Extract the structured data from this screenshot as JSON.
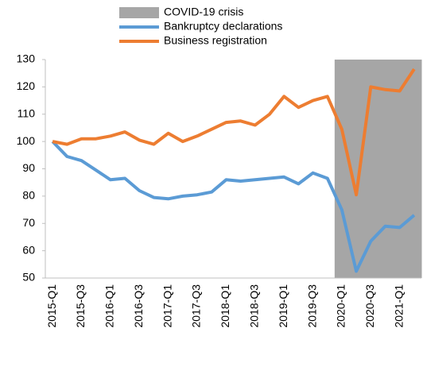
{
  "chart_data": {
    "type": "line",
    "categories": [
      "2015-Q1",
      null,
      "2015-Q3",
      null,
      "2016-Q1",
      null,
      "2016-Q3",
      null,
      "2017-Q1",
      null,
      "2017-Q3",
      null,
      "2018-Q1",
      null,
      "2018-Q3",
      null,
      "2019-Q1",
      null,
      "2019-Q3",
      null,
      "2020-Q1",
      null,
      "2020-Q3",
      null,
      "2021-Q1",
      null
    ],
    "series": [
      {
        "name": "COVID-19 crisis",
        "type": "bar",
        "color": "#a6a6a6",
        "values": [
          null,
          null,
          null,
          null,
          null,
          null,
          null,
          null,
          null,
          null,
          null,
          null,
          null,
          null,
          null,
          null,
          null,
          null,
          null,
          null,
          130,
          130,
          130,
          130,
          130,
          130
        ]
      },
      {
        "name": "Bankruptcy declarations",
        "type": "line",
        "color": "#5b9bd5",
        "values": [
          100,
          94.5,
          93,
          89.5,
          86,
          86.5,
          82,
          79.5,
          79,
          80,
          80.5,
          81.5,
          86,
          85.5,
          86,
          86.5,
          87,
          84.5,
          88.5,
          86.5,
          75,
          52.5,
          63.5,
          69,
          68.5,
          73
        ]
      },
      {
        "name": "Business registration",
        "type": "line",
        "color": "#ed7d31",
        "values": [
          100,
          99,
          101,
          101,
          102,
          103.5,
          100.5,
          99,
          103,
          100,
          102,
          104.5,
          107,
          107.5,
          106,
          110,
          116.5,
          112.5,
          115,
          116.5,
          104.5,
          80.5,
          120,
          119,
          118.5,
          126.5
        ]
      }
    ],
    "ylim": [
      50,
      130
    ],
    "yticks": [
      50,
      60,
      70,
      80,
      90,
      100,
      110,
      120,
      130
    ],
    "grid": false
  }
}
